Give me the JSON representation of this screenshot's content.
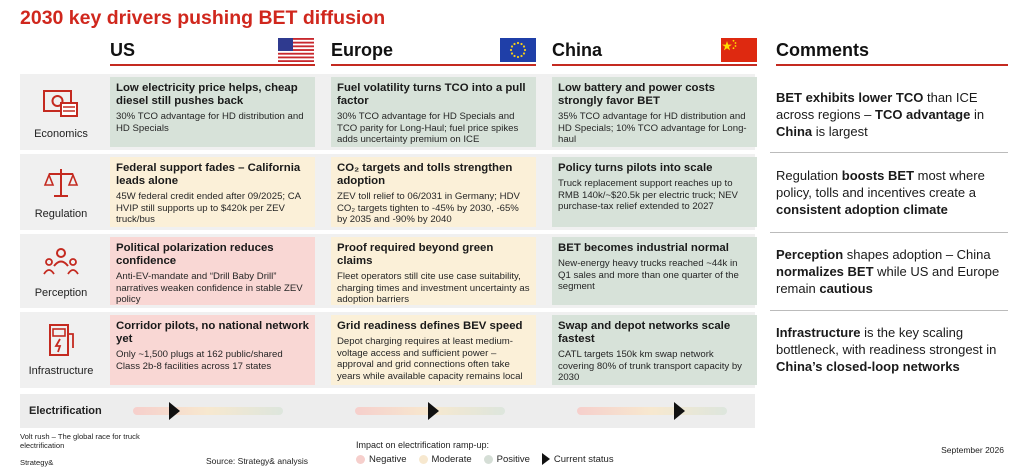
{
  "title": "2030 key drivers pushing BET diffusion",
  "columns": {
    "us": "US",
    "europe": "Europe",
    "china": "China",
    "comments": "Comments"
  },
  "rows": [
    {
      "label": "Economics",
      "icon": "money-icon",
      "us": {
        "status": "positive",
        "heading": "Low electricity price helps, cheap diesel still pushes back",
        "body": "30% TCO advantage for HD distribution and HD Specials"
      },
      "europe": {
        "status": "positive",
        "heading": "Fuel volatility turns TCO into a pull factor",
        "body": "30% TCO advantage for HD Specials and TCO parity for Long-Haul; fuel price spikes adds uncertainty premium on ICE"
      },
      "china": {
        "status": "positive",
        "heading": "Low battery and power costs strongly favor BET",
        "body": "35% TCO advantage for HD distribution and HD Specials; 10% TCO advantage for Long-haul"
      },
      "comment_parts": [
        {
          "t": "BET exhibits lower TCO",
          "b": true
        },
        {
          "t": " than ICE across regions – ",
          "b": false
        },
        {
          "t": "TCO advantage",
          "b": true
        },
        {
          "t": " in ",
          "b": false
        },
        {
          "t": "China",
          "b": true
        },
        {
          "t": " is largest",
          "b": false
        }
      ]
    },
    {
      "label": "Regulation",
      "icon": "scales-icon",
      "us": {
        "status": "moderate",
        "heading": "Federal support fades – California leads alone",
        "body": "45W federal credit ended after 09/2025; CA HVIP still supports up to $420k per ZEV truck/bus"
      },
      "europe": {
        "status": "moderate",
        "heading": "CO₂ targets and tolls strengthen adoption",
        "body": "ZEV toll relief to 06/2031 in Germany; HDV CO₂ targets tighten to -45% by 2030, -65% by 2035 and -90% by 2040"
      },
      "china": {
        "status": "positive",
        "heading": "Policy turns pilots into scale",
        "body": "Truck replacement support reaches up to RMB 140k/~$20.5k per electric truck; NEV purchase-tax relief extended to 2027"
      },
      "comment_parts": [
        {
          "t": "Regulation ",
          "b": false
        },
        {
          "t": "boosts BET",
          "b": true
        },
        {
          "t": " most where policy, tolls and incentives create a ",
          "b": false
        },
        {
          "t": "consistent adoption climate",
          "b": true
        }
      ]
    },
    {
      "label": "Perception",
      "icon": "people-icon",
      "us": {
        "status": "negative",
        "heading": "Political polarization reduces confidence",
        "body": "Anti-EV-mandate and “Drill Baby Drill” narratives weaken confidence in stable ZEV policy"
      },
      "europe": {
        "status": "moderate",
        "heading": "Proof required beyond green claims",
        "body": "Fleet operators still cite use case suitability, charging times and investment uncertainty as adoption barriers"
      },
      "china": {
        "status": "positive",
        "heading": "BET becomes industrial normal",
        "body": "New-energy heavy trucks reached ~44k in Q1 sales and more than one quarter of the segment"
      },
      "comment_parts": [
        {
          "t": "Perception",
          "b": true
        },
        {
          "t": " shapes adoption – China ",
          "b": false
        },
        {
          "t": "normalizes BET",
          "b": true
        },
        {
          "t": " while US and Europe remain ",
          "b": false
        },
        {
          "t": "cautious",
          "b": true
        }
      ]
    },
    {
      "label": "Infrastructure",
      "icon": "charger-icon",
      "us": {
        "status": "negative",
        "heading": "Corridor pilots, no national network yet",
        "body": "Only ~1,500 plugs at 162 public/shared Class 2b-8 facilities across 17 states"
      },
      "europe": {
        "status": "moderate",
        "heading": "Grid readiness defines BEV speed",
        "body": "Depot charging requires at least medium-voltage access and sufficient power – approval and grid connections often take years while available capacity remains local"
      },
      "china": {
        "status": "positive",
        "heading": "Swap and depot networks scale fastest",
        "body": "CATL targets 150k km swap network covering 80% of trunk transport capacity by 2030"
      },
      "comment_parts": [
        {
          "t": "Infrastructure",
          "b": true
        },
        {
          "t": " is the key scaling bottleneck, with readiness strongest in ",
          "b": false
        },
        {
          "t": "China’s closed-loop networks",
          "b": true
        }
      ]
    }
  ],
  "electrification": {
    "label": "Electrification",
    "us_status": 0.27,
    "europe_status": 0.52,
    "china_status": 0.68
  },
  "legend": {
    "title": "Impact on electrification ramp-up:",
    "negative": "Negative",
    "moderate": "Moderate",
    "positive": "Positive",
    "current": "Current status"
  },
  "footer": {
    "report": "Volt rush – The global race for truck electrification",
    "brand": "Strategy&",
    "source": "Source: Strategy& analysis",
    "date": "September 2026"
  },
  "colors": {
    "accent": "#d0271d",
    "positive": "#d7e2d9",
    "moderate": "#fbf0d8",
    "negative": "#f9d7d4"
  }
}
